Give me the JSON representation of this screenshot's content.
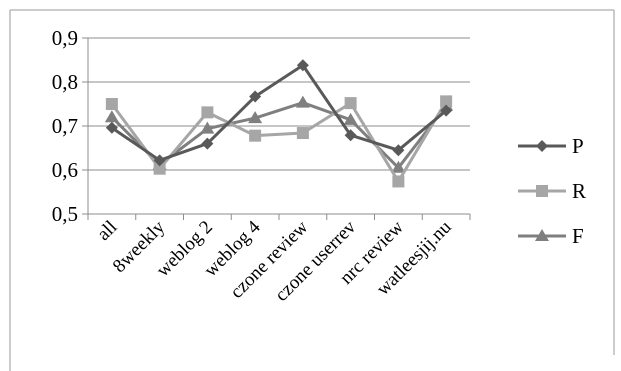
{
  "chart_data": {
    "type": "line",
    "categories": [
      "all",
      "8weekly",
      "weblog 2",
      "weblog 4",
      "czone review",
      "czone userrev",
      "nrc review",
      "watleesjij.nu"
    ],
    "ylim": [
      0.5,
      0.9
    ],
    "yticks": [
      "0,5",
      "0,6",
      "0,7",
      "0,8",
      "0,9"
    ],
    "ytick_values": [
      0.5,
      0.6,
      0.7,
      0.8,
      0.9
    ],
    "grid": true,
    "legend_position": "right",
    "series": [
      {
        "name": "P",
        "marker": "diamond",
        "color": "#595959",
        "values": [
          0.696,
          0.622,
          0.66,
          0.767,
          0.838,
          0.679,
          0.645,
          0.735
        ]
      },
      {
        "name": "R",
        "marker": "square",
        "color": "#a6a6a6",
        "values": [
          0.75,
          0.603,
          0.731,
          0.678,
          0.684,
          0.752,
          0.574,
          0.756
        ]
      },
      {
        "name": "F",
        "marker": "triangle",
        "color": "#7f7f7f",
        "values": [
          0.72,
          0.612,
          0.694,
          0.718,
          0.753,
          0.714,
          0.605,
          0.746
        ]
      }
    ]
  }
}
